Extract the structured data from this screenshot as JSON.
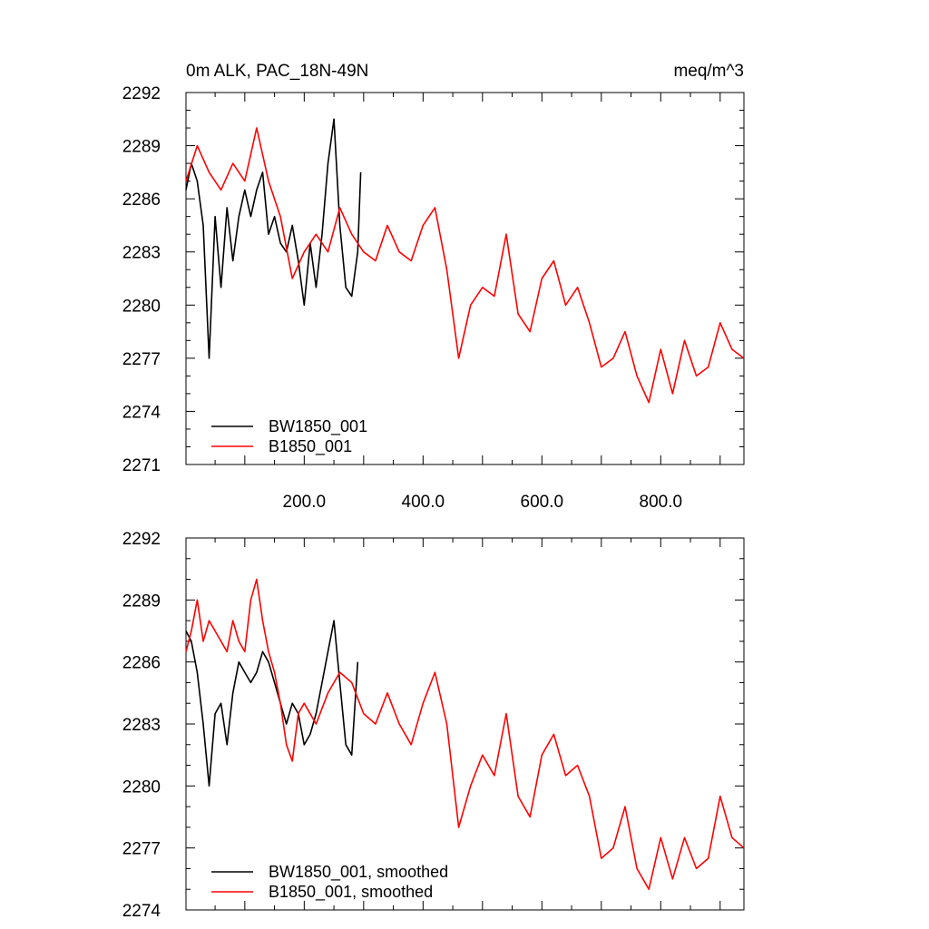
{
  "chart_data": [
    {
      "type": "line",
      "title": "0m ALK, PAC_18N-49N",
      "units": "meq/m^3",
      "xlim": [
        1,
        940
      ],
      "ylim": [
        2271,
        2292
      ],
      "x_ticks": [
        200,
        400,
        600,
        800
      ],
      "x_tick_labels": [
        "200.0",
        "400.0",
        "600.0",
        "800.0"
      ],
      "y_ticks": [
        2271,
        2274,
        2277,
        2280,
        2283,
        2286,
        2289,
        2292
      ],
      "y_tick_labels": [
        "2271",
        "2274",
        "2277",
        "2280",
        "2283",
        "2286",
        "2289",
        "2292"
      ],
      "legend_position": "bottom-left",
      "grid": false,
      "series": [
        {
          "name": "BW1850_001",
          "color": "#000000",
          "x": [
            1,
            10,
            20,
            30,
            40,
            50,
            60,
            70,
            80,
            90,
            100,
            110,
            120,
            130,
            140,
            150,
            160,
            170,
            180,
            190,
            200,
            210,
            220,
            230,
            240,
            250,
            260,
            270,
            280,
            290,
            295
          ],
          "y": [
            2286.5,
            2288.0,
            2287.0,
            2284.5,
            2277.0,
            2285.0,
            2281.0,
            2285.5,
            2282.5,
            2285.0,
            2286.5,
            2285.0,
            2286.5,
            2287.5,
            2284.0,
            2285.0,
            2283.5,
            2283.0,
            2284.5,
            2282.5,
            2280.0,
            2283.5,
            2281.0,
            2284.0,
            2288.0,
            2290.5,
            2284.5,
            2281.0,
            2280.5,
            2283.0,
            2287.5
          ]
        },
        {
          "name": "B1850_001",
          "color": "#ff0000",
          "x": [
            1,
            20,
            40,
            60,
            80,
            100,
            120,
            140,
            160,
            180,
            200,
            220,
            240,
            260,
            280,
            300,
            320,
            340,
            360,
            380,
            400,
            420,
            440,
            460,
            480,
            500,
            520,
            540,
            560,
            580,
            600,
            620,
            640,
            660,
            680,
            700,
            720,
            740,
            760,
            780,
            800,
            820,
            840,
            860,
            880,
            900,
            920,
            940
          ],
          "y": [
            2287.0,
            2289.0,
            2287.5,
            2286.5,
            2288.0,
            2287.0,
            2290.0,
            2287.0,
            2285.0,
            2281.5,
            2283.0,
            2284.0,
            2283.0,
            2285.5,
            2284.0,
            2283.0,
            2282.5,
            2284.5,
            2283.0,
            2282.5,
            2284.5,
            2285.5,
            2282.0,
            2277.0,
            2280.0,
            2281.0,
            2280.5,
            2284.0,
            2279.5,
            2278.5,
            2281.5,
            2282.5,
            2280.0,
            2281.0,
            2279.0,
            2276.5,
            2277.0,
            2278.5,
            2276.0,
            2274.5,
            2277.5,
            2275.0,
            2278.0,
            2276.0,
            2276.5,
            2279.0,
            2277.5,
            2277.0
          ]
        }
      ]
    },
    {
      "type": "line",
      "title": "",
      "xlim": [
        1,
        940
      ],
      "ylim": [
        2274,
        2292
      ],
      "x_ticks": [],
      "x_tick_labels": [],
      "y_ticks": [
        2274,
        2277,
        2280,
        2283,
        2286,
        2289,
        2292
      ],
      "y_tick_labels": [
        "2274",
        "2277",
        "2280",
        "2283",
        "2286",
        "2289",
        "2292"
      ],
      "legend_position": "bottom-left",
      "grid": false,
      "series": [
        {
          "name": "BW1850_001, smoothed",
          "color": "#000000",
          "x": [
            1,
            10,
            20,
            30,
            40,
            50,
            60,
            70,
            80,
            90,
            100,
            110,
            120,
            130,
            140,
            150,
            160,
            170,
            180,
            190,
            200,
            210,
            220,
            230,
            240,
            250,
            260,
            270,
            280,
            290
          ],
          "y": [
            2287.5,
            2287.0,
            2285.5,
            2283.0,
            2280.0,
            2283.5,
            2284.0,
            2282.0,
            2284.5,
            2286.0,
            2285.5,
            2285.0,
            2285.5,
            2286.5,
            2286.0,
            2285.0,
            2284.0,
            2283.0,
            2284.0,
            2283.5,
            2282.0,
            2282.5,
            2283.5,
            2285.0,
            2286.5,
            2288.0,
            2285.0,
            2282.0,
            2281.5,
            2286.0
          ]
        },
        {
          "name": "B1850_001, smoothed",
          "color": "#ff0000",
          "x": [
            1,
            10,
            20,
            30,
            40,
            50,
            60,
            70,
            80,
            90,
            100,
            110,
            120,
            130,
            140,
            150,
            160,
            170,
            180,
            190,
            200,
            220,
            240,
            260,
            280,
            300,
            320,
            340,
            360,
            380,
            400,
            420,
            440,
            460,
            480,
            500,
            520,
            540,
            560,
            580,
            600,
            620,
            640,
            660,
            680,
            700,
            720,
            740,
            760,
            780,
            800,
            820,
            840,
            860,
            880,
            900,
            920,
            940
          ],
          "y": [
            2286.5,
            2287.5,
            2289.0,
            2287.0,
            2288.0,
            2287.5,
            2287.0,
            2286.5,
            2288.0,
            2287.0,
            2286.5,
            2289.0,
            2290.0,
            2288.0,
            2286.5,
            2285.5,
            2284.0,
            2282.0,
            2281.2,
            2283.5,
            2284.0,
            2283.0,
            2284.5,
            2285.5,
            2285.0,
            2283.5,
            2283.0,
            2284.5,
            2283.0,
            2282.0,
            2284.0,
            2285.5,
            2283.0,
            2278.0,
            2280.0,
            2281.5,
            2280.5,
            2283.5,
            2279.5,
            2278.5,
            2281.5,
            2282.5,
            2280.5,
            2281.0,
            2279.5,
            2276.5,
            2277.0,
            2279.0,
            2276.0,
            2275.0,
            2277.5,
            2275.5,
            2277.5,
            2276.0,
            2276.5,
            2279.5,
            2277.5,
            2277.0
          ]
        }
      ]
    }
  ]
}
